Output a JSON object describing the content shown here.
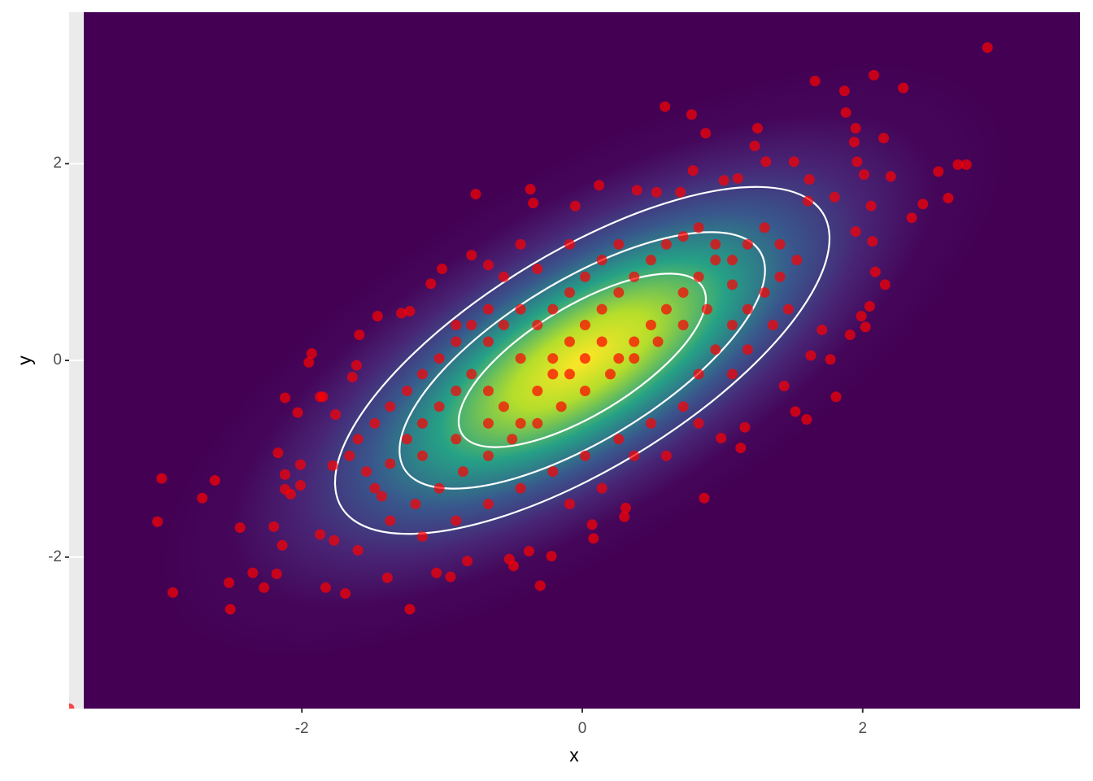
{
  "chart_data": {
    "type": "scatter",
    "xlabel": "x",
    "ylabel": "y",
    "color": "#ff0000",
    "xlim": [
      -3.66,
      3.55
    ],
    "ylim": [
      -3.54,
      3.54
    ],
    "xticks": [
      -2,
      0,
      2
    ],
    "yticks": [
      -2,
      0,
      2
    ],
    "grid": true,
    "x": [
      2.89,
      1.66,
      2.08,
      1.87,
      2.29,
      0.59,
      0.78,
      1.88,
      1.95,
      1.25,
      0.88,
      2.15,
      1.94,
      1.23,
      1.96,
      2.01,
      2.2,
      1.51,
      1.31,
      0.79,
      2.54,
      2.68,
      2.74,
      2.61,
      2.43,
      2.35,
      2.06,
      2.07,
      1.95,
      2.09,
      2.16,
      2.05,
      1.99,
      2.02,
      1.91,
      1.8,
      1.77,
      1.81,
      1.6,
      1.52,
      1.63,
      1.71,
      1.44,
      1.16,
      1.13,
      0.99,
      0.87,
      0.3,
      0.31,
      0.08,
      0.07,
      -0.22,
      -0.3,
      -0.38,
      -0.52,
      -0.49,
      -0.82,
      -0.94,
      -1.04,
      -1.23,
      -1.39,
      -1.69,
      -1.83,
      -1.87,
      -1.77,
      -1.6,
      -2.14,
      -2.18,
      -2.27,
      -2.35,
      -2.51,
      -2.52,
      -2.44,
      -2.71,
      -2.62,
      -2.92,
      -3.03,
      -3.0,
      -2.2,
      -2.12,
      -2.08,
      -2.12,
      -2.01,
      -2.17,
      -2.01,
      -2.12,
      -2.03,
      -1.95,
      -1.93,
      -1.87,
      -1.85,
      -1.76,
      -1.59,
      -1.61,
      -1.64,
      -1.46,
      -1.78,
      -3.66,
      -0.76,
      -0.37,
      -0.35,
      -0.05,
      0.12,
      0.39,
      0.53,
      0.7,
      1.01,
      1.11,
      1.62,
      1.61,
      -0.79,
      -0.67,
      -1.08,
      -1.23,
      -1.29,
      -1.0,
      -0.9,
      -0.67,
      -0.44,
      -0.21,
      -0.09,
      0.02,
      0.14,
      0.26,
      0.37,
      0.49,
      0.6,
      0.72,
      0.83,
      0.95,
      1.07,
      1.18,
      1.3,
      1.41,
      1.53,
      1.07,
      0.89,
      0.72,
      0.54,
      0.37,
      0.2,
      0.02,
      -0.15,
      -0.32,
      -0.5,
      -0.67,
      -0.85,
      -1.02,
      -1.19,
      -1.37,
      -1.48,
      -1.37,
      -1.25,
      -1.14,
      -1.02,
      -0.9,
      -0.79,
      -0.67,
      -0.56,
      -0.44,
      -0.32,
      -0.21,
      -0.09,
      0.02,
      0.14,
      0.26,
      0.37,
      0.49,
      0.6,
      0.72,
      0.83,
      0.95,
      0.26,
      0.14,
      0.02,
      -0.09,
      -0.21,
      -0.32,
      -0.44,
      -0.56,
      -0.67,
      -0.79,
      -0.9,
      -1.02,
      -1.14,
      -1.25,
      -1.37,
      -1.48,
      -1.6,
      -1.66,
      -1.54,
      -1.43,
      -1.14,
      -0.9,
      -0.67,
      -0.44,
      -0.21,
      0.02,
      0.26,
      0.49,
      0.72,
      0.83,
      0.95,
      1.07,
      1.18,
      1.3,
      1.41,
      -0.09,
      -0.32,
      -0.56,
      -0.44,
      0.37,
      0.6,
      0.83,
      -0.67,
      -0.9,
      -1.14,
      -0.09,
      0.14,
      1.07,
      1.18,
      1.36,
      1.47
    ],
    "values": [
      3.18,
      2.84,
      2.9,
      2.74,
      2.77,
      2.58,
      2.5,
      2.52,
      2.36,
      2.36,
      2.31,
      2.26,
      2.22,
      2.18,
      2.02,
      1.89,
      1.87,
      2.02,
      2.02,
      1.93,
      1.92,
      1.99,
      1.99,
      1.65,
      1.59,
      1.45,
      1.57,
      1.21,
      1.31,
      0.9,
      0.77,
      0.55,
      0.45,
      0.34,
      0.26,
      1.66,
      0.01,
      -0.37,
      -0.6,
      -0.52,
      0.05,
      0.31,
      -0.26,
      -0.68,
      -0.89,
      -0.79,
      -1.4,
      -1.59,
      -1.5,
      -1.81,
      -1.67,
      -1.99,
      -2.29,
      -1.94,
      -2.02,
      -2.09,
      -2.04,
      -2.2,
      -2.16,
      -2.53,
      -2.21,
      -2.37,
      -2.31,
      -1.77,
      -1.83,
      -1.93,
      -1.88,
      -2.17,
      -2.31,
      -2.16,
      -2.53,
      -2.26,
      -1.7,
      -1.4,
      -1.22,
      -2.36,
      -1.64,
      -1.2,
      -1.69,
      -1.31,
      -1.36,
      -1.16,
      -1.27,
      -0.94,
      -1.06,
      -0.38,
      -0.53,
      -0.02,
      0.07,
      -0.37,
      -0.37,
      -0.55,
      0.26,
      -0.05,
      -0.17,
      0.45,
      -1.07,
      -3.54,
      1.69,
      1.74,
      1.6,
      1.57,
      1.78,
      1.73,
      1.71,
      1.71,
      1.83,
      1.85,
      1.84,
      1.62,
      1.07,
      0.97,
      0.78,
      0.5,
      0.48,
      0.93,
      0.36,
      0.19,
      0.02,
      -0.14,
      0.19,
      0.36,
      0.52,
      0.69,
      0.85,
      1.02,
      1.18,
      1.26,
      1.35,
      1.18,
      1.02,
      1.18,
      1.35,
      1.18,
      1.02,
      0.77,
      0.52,
      0.36,
      0.19,
      0.02,
      -0.14,
      -0.31,
      -0.47,
      -0.64,
      -0.8,
      -0.97,
      -1.13,
      -1.3,
      -1.46,
      -1.63,
      -1.3,
      -1.05,
      -0.8,
      -0.64,
      -0.47,
      -0.31,
      -0.14,
      -0.31,
      -0.47,
      -0.64,
      -0.31,
      0.02,
      -0.14,
      0.02,
      0.19,
      0.02,
      0.19,
      0.36,
      0.52,
      0.69,
      0.85,
      1.02,
      1.18,
      1.02,
      0.85,
      0.69,
      0.52,
      0.36,
      0.52,
      0.36,
      0.52,
      0.36,
      0.19,
      0.02,
      -0.14,
      -0.31,
      -0.47,
      -0.64,
      -0.8,
      -0.97,
      -1.13,
      -1.38,
      -0.97,
      -0.8,
      -0.64,
      -1.3,
      -1.13,
      -0.97,
      -0.8,
      -0.64,
      -0.47,
      -0.14,
      0.11,
      0.36,
      0.52,
      0.69,
      0.85,
      1.18,
      0.93,
      0.85,
      1.18,
      -0.97,
      -0.97,
      -0.64,
      -1.46,
      -1.63,
      -1.79,
      -1.46,
      -1.3,
      -0.14,
      0.11,
      0.36,
      0.52
    ]
  }
}
